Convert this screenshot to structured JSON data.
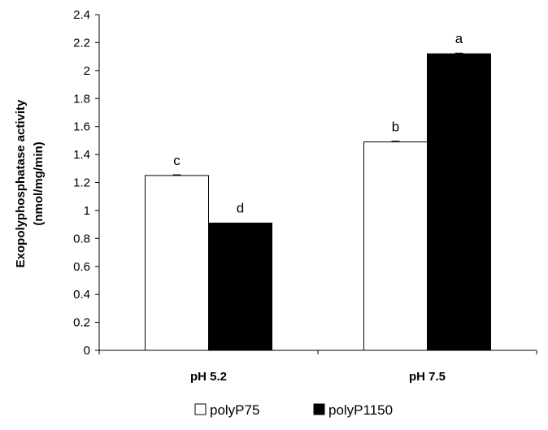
{
  "chart_data": {
    "type": "bar",
    "categories": [
      "pH 5.2",
      "pH 7.5"
    ],
    "series": [
      {
        "name": "polyP75",
        "values": [
          1.25,
          1.49
        ],
        "errors": [
          0.005,
          0.005
        ],
        "labels": [
          "c",
          "b"
        ],
        "color": "#ffffff"
      },
      {
        "name": "polyP1150",
        "values": [
          0.91,
          2.12
        ],
        "errors": [
          0.0,
          0.005
        ],
        "labels": [
          "d",
          "a"
        ],
        "color": "#000000"
      }
    ],
    "ylabel_line1": "Exopolyphosphatase activity",
    "ylabel_line2": "(nmol/mg/min)",
    "ylim": [
      0,
      2.4
    ],
    "yticks": [
      "0",
      "0.2",
      "0.4",
      "0.6",
      "0.8",
      "1",
      "1.2",
      "1.4",
      "1.6",
      "1.8",
      "2",
      "2.2",
      "2.4"
    ],
    "grid": false,
    "legend_position": "bottom"
  }
}
